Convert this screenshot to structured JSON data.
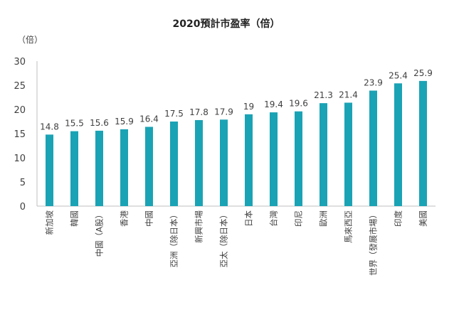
{
  "chart_data": {
    "type": "bar",
    "title": "2020預計市盈率（倍）",
    "unit_label": "（倍）",
    "categories": [
      "新加坡",
      "韓國",
      "中國（A股）",
      "香港",
      "中國",
      "亞洲（除日本）",
      "新興市場",
      "亞太（除日本）",
      "日本",
      "台灣",
      "印尼",
      "歐洲",
      "馬來西亞",
      "世界（發展市場）",
      "印度",
      "美國"
    ],
    "values": [
      14.8,
      15.5,
      15.6,
      15.9,
      16.4,
      17.5,
      17.8,
      17.9,
      19,
      19.4,
      19.6,
      21.3,
      21.4,
      23.9,
      25.4,
      25.9
    ],
    "data_labels": [
      "14.8",
      "15.5",
      "15.6",
      "15.9",
      "16.4",
      "17.5",
      "17.8",
      "17.9",
      "19",
      "19.4",
      "19.6",
      "21.3",
      "21.4",
      "23.9",
      "25.4",
      "25.9"
    ],
    "y_ticks": [
      "0",
      "5",
      "10",
      "15",
      "20",
      "25",
      "30"
    ],
    "ylim": [
      0,
      30
    ],
    "grid": false,
    "legend": "none",
    "bar_color": "#1AA3B5"
  }
}
